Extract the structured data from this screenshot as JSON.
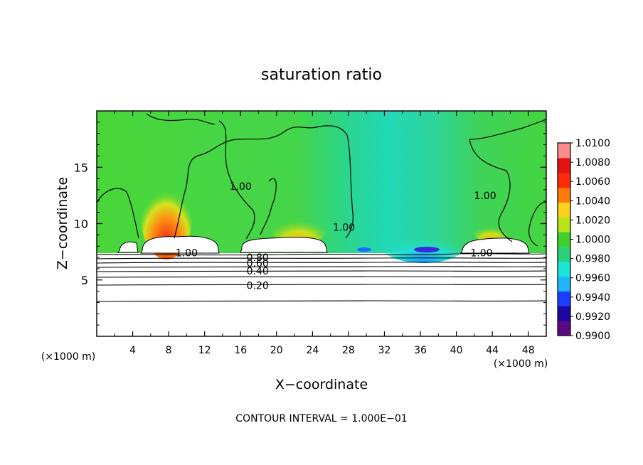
{
  "chart_data": {
    "type": "heatmap",
    "title": "saturation ratio",
    "xlabel": "X−coordinate",
    "ylabel": "Z−coordinate",
    "x_unit_label": "(×1000 m)",
    "y_unit_label": "(×1000 m)",
    "xlim": [
      0,
      50
    ],
    "ylim": [
      0,
      20
    ],
    "x_ticks": [
      4,
      8,
      12,
      16,
      20,
      24,
      28,
      32,
      36,
      40,
      44,
      48
    ],
    "y_ticks": [
      5,
      10,
      15
    ],
    "footer": "CONTOUR INTERVAL = 1.000E−01",
    "colorbar": {
      "labels": [
        "1.0100",
        "1.0080",
        "1.0060",
        "1.0040",
        "1.0020",
        "1.0000",
        "0.9980",
        "0.9960",
        "0.9940",
        "0.9920",
        "0.9900"
      ],
      "min": 0.99,
      "max": 1.01,
      "colors": [
        "#5a0a82",
        "#1f06a0",
        "#1a3fff",
        "#1fb8ff",
        "#1ae6d7",
        "#2bd17a",
        "#3fcf2e",
        "#b8e21a",
        "#ffd11a",
        "#ff7a0a",
        "#ff2a0a",
        "#e51414",
        "#ff8c8c"
      ]
    },
    "contour_labels": [
      {
        "text": "1.00",
        "x": 10.0,
        "z": 7.4
      },
      {
        "text": "1.00",
        "x": 16.0,
        "z": 13.3
      },
      {
        "text": "1.00",
        "x": 27.5,
        "z": 9.7
      },
      {
        "text": "1.00",
        "x": 43.2,
        "z": 12.5
      },
      {
        "text": "1.00",
        "x": 42.8,
        "z": 7.4
      },
      {
        "text": "0.80",
        "x": 17.9,
        "z": 7.0
      },
      {
        "text": "0.60",
        "x": 17.9,
        "z": 6.5
      },
      {
        "text": "0.40",
        "x": 17.9,
        "z": 5.8
      },
      {
        "text": "0.20",
        "x": 17.9,
        "z": 4.5
      }
    ]
  }
}
